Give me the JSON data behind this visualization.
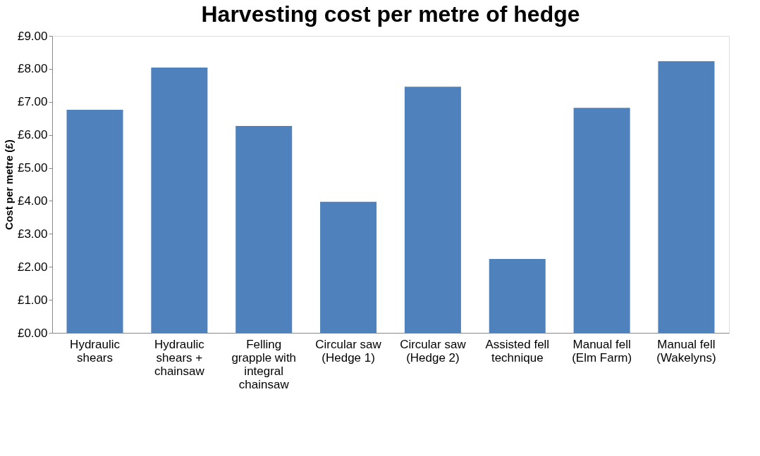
{
  "chart_data": {
    "type": "bar",
    "title": "Harvesting cost per metre of hedge",
    "ylabel": "Cost per metre (£)",
    "categories": [
      "Hydraulic shears",
      "Hydraulic shears + chainsaw",
      "Felling grapple with integral chainsaw",
      "Circular saw (Hedge 1)",
      "Circular saw (Hedge 2)",
      "Assisted fell technique",
      "Manual fell (Elm Farm)",
      "Manual fell (Wakelyns)"
    ],
    "values": [
      6.76,
      8.04,
      6.27,
      3.97,
      7.46,
      2.24,
      6.82,
      8.23
    ],
    "color": "#4f81bd",
    "ylim": [
      0,
      9
    ],
    "yticks": [
      {
        "value": 0,
        "label": "£0.00"
      },
      {
        "value": 1,
        "label": "£1.00"
      },
      {
        "value": 2,
        "label": "£2.00"
      },
      {
        "value": 3,
        "label": "£3.00"
      },
      {
        "value": 4,
        "label": "£4.00"
      },
      {
        "value": 5,
        "label": "£5.00"
      },
      {
        "value": 6,
        "label": "£6.00"
      },
      {
        "value": 7,
        "label": "£7.00"
      },
      {
        "value": 8,
        "label": "£8.00"
      },
      {
        "value": 9,
        "label": "£9.00"
      }
    ],
    "grid": false
  }
}
